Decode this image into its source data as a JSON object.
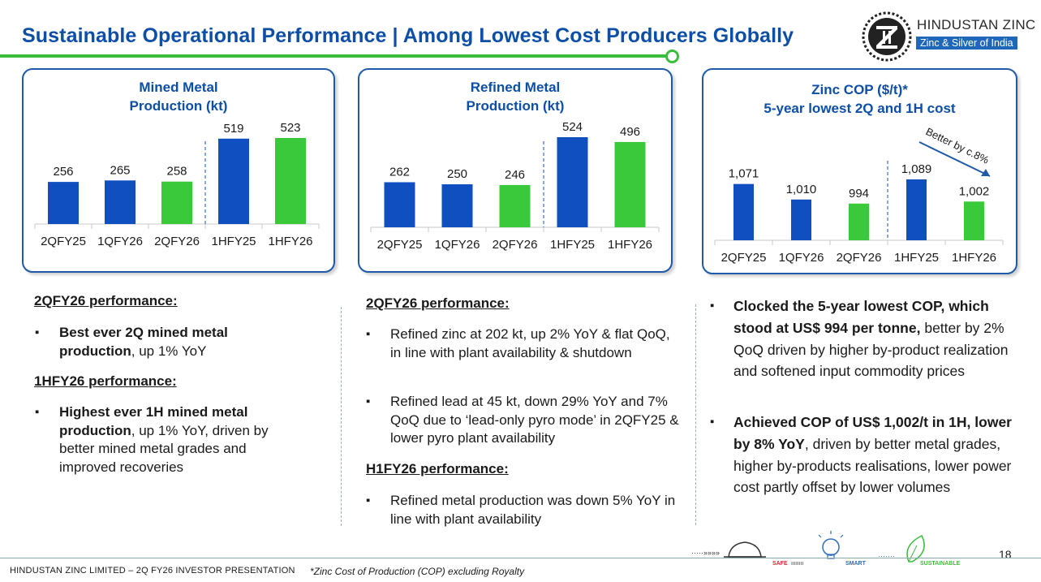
{
  "header": {
    "title": "Sustainable Operational Performance | Among Lowest Cost Producers Globally",
    "logo_name": "HINDUSTAN ZINC",
    "logo_tagline": "Zinc & Silver of India",
    "logo_icon": "hindustan-zinc-logo-icon"
  },
  "colors": {
    "blue_bar": "#0f4fbf",
    "green_bar": "#39c93a",
    "title_blue": "#0d4ea6",
    "accent_green": "#3bbd3b"
  },
  "chart_data": [
    {
      "type": "bar",
      "title_lines": [
        "Mined Metal",
        "Production (kt)"
      ],
      "categories": [
        "2QFY25",
        "1QFY26",
        "2QFY26",
        "1HFY25",
        "1HFY26"
      ],
      "values": [
        256,
        265,
        258,
        519,
        523
      ],
      "value_labels": [
        "256",
        "265",
        "258",
        "519",
        "523"
      ],
      "bar_colors": [
        "blue",
        "blue",
        "green",
        "blue",
        "green"
      ],
      "separator_after_index": 2
    },
    {
      "type": "bar",
      "title_lines": [
        "Refined Metal",
        "Production (kt)"
      ],
      "categories": [
        "2QFY25",
        "1QFY26",
        "2QFY26",
        "1HFY25",
        "1HFY26"
      ],
      "values": [
        262,
        250,
        246,
        524,
        496
      ],
      "value_labels": [
        "262",
        "250",
        "246",
        "524",
        "496"
      ],
      "bar_colors": [
        "blue",
        "blue",
        "green",
        "blue",
        "green"
      ],
      "separator_after_index": 2
    },
    {
      "type": "bar",
      "title_lines": [
        "Zinc COP ($/t)*",
        "5-year lowest 2Q and 1H cost"
      ],
      "categories": [
        "2QFY25",
        "1QFY26",
        "2QFY26",
        "1HFY25",
        "1HFY26"
      ],
      "values": [
        1071,
        1010,
        994,
        1089,
        1002
      ],
      "value_labels": [
        "1,071",
        "1,010",
        "994",
        "1,089",
        "1,002"
      ],
      "bar_colors": [
        "blue",
        "blue",
        "green",
        "blue",
        "green"
      ],
      "separator_after_index": 2,
      "annotation": "Better by c.8%"
    }
  ],
  "mined_text": {
    "head1": "2QFY26 performance:",
    "b1_bold": "Best ever 2Q mined metal production",
    "b1_rest": ", up 1% YoY",
    "head2": "1HFY26 performance:",
    "b2_bold": "Highest ever 1H mined metal production",
    "b2_rest": ", up 1% YoY, driven by better mined metal grades and improved recoveries"
  },
  "refined_text": {
    "head1": "2QFY26 performance:",
    "b1": "Refined zinc at 202 kt, up 2% YoY & flat QoQ, in line with plant availability & shutdown",
    "b2": "Refined lead at 45 kt, down 29% YoY and 7% QoQ due to ‘lead-only pyro mode’ in 2QFY25 & lower pyro plant availability",
    "head2": "H1FY26 performance:",
    "b3": "Refined metal production was down 5% YoY in line with plant availability"
  },
  "cop_text": {
    "b1_bold": "Clocked the 5-year lowest COP, which stood at US$ 994 per tonne,",
    "b1_rest": " better by 2% QoQ driven by higher by-product realization and softened input commodity prices",
    "b2_bold": "Achieved COP of US$ 1,002/t in 1H, lower by 8% YoY",
    "b2_rest": ", driven by better metal grades, higher by-products realisations, lower power cost partly offset by lower volumes"
  },
  "footer": {
    "left": "HINDUSTAN ZINC LIMITED – 2Q FY26 INVESTOR PRESENTATION",
    "note": "*Zinc Cost of Production (COP) excluding Royalty",
    "page": "18",
    "journey_labels": [
      "SAFE",
      "SMART",
      "SUSTAINABLE"
    ]
  }
}
